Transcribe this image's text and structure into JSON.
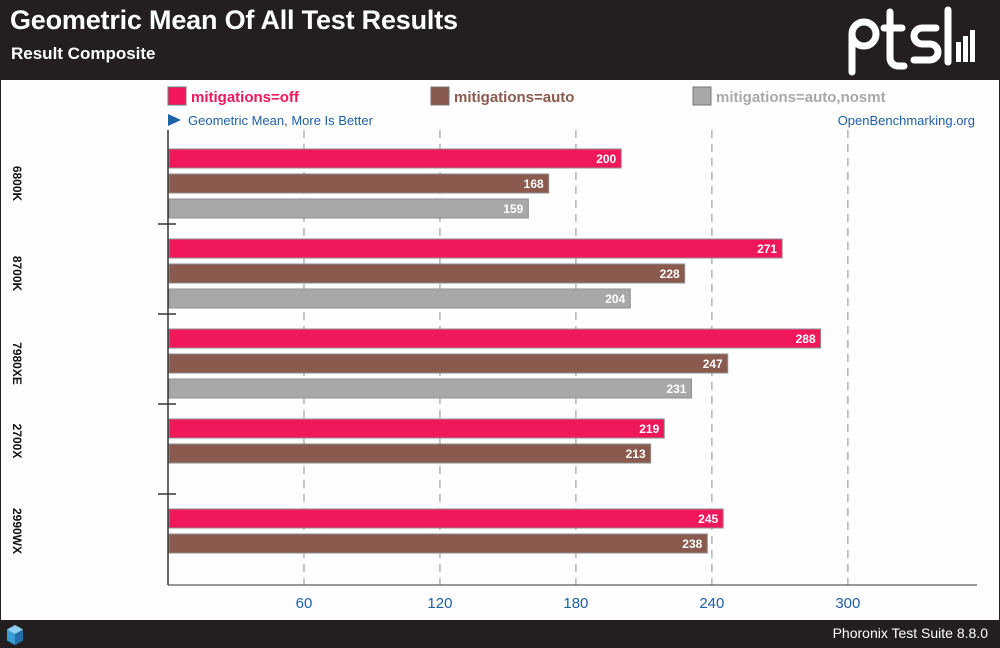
{
  "header": {
    "title": "Geometric Mean Of All Test Results",
    "subtitle": "Result Composite"
  },
  "footer": {
    "text": "Phoronix Test Suite 8.8.0"
  },
  "chart_data": {
    "type": "bar",
    "orientation": "horizontal",
    "note": "Geometric Mean, More Is Better",
    "source": "OpenBenchmarking.org",
    "categories": [
      "6800K",
      "8700K",
      "7980XE",
      "2700X",
      "2990WX"
    ],
    "series": [
      {
        "name": "mitigations=off",
        "color": "#f0175b",
        "values": [
          200,
          271,
          288,
          219,
          245
        ]
      },
      {
        "name": "mitigations=auto",
        "color": "#8a5a4e",
        "values": [
          168,
          228,
          247,
          213,
          238
        ]
      },
      {
        "name": "mitigations=auto,nosmt",
        "color": "#a8a8a8",
        "values": [
          159,
          204,
          231,
          null,
          null
        ]
      }
    ],
    "xticks": [
      60,
      120,
      180,
      240,
      300
    ],
    "xlim": [
      0,
      357
    ],
    "grid": true,
    "legend_position": "top"
  }
}
